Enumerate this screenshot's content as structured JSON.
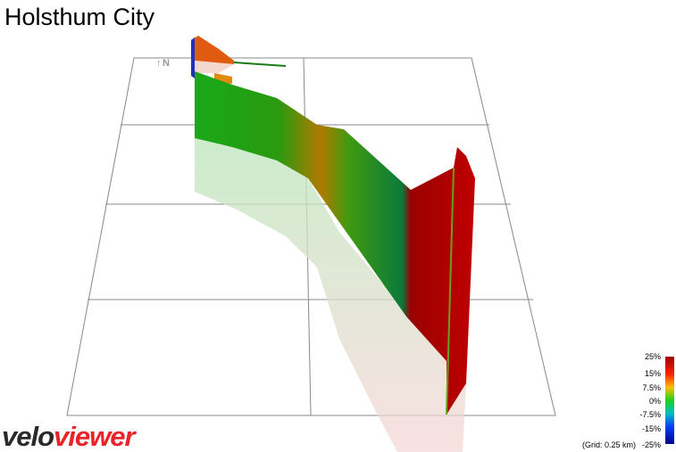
{
  "header": {
    "title": "Holsthum City"
  },
  "compass": {
    "label": "N"
  },
  "legend": {
    "labels": [
      "25%",
      "15%",
      "7.5%",
      "0%",
      "-7.5%",
      "-15%",
      "-25%"
    ],
    "grid_note": "(Grid: 0.25 km)"
  },
  "logo": {
    "part1": "velo",
    "part2": "viewer"
  }
}
